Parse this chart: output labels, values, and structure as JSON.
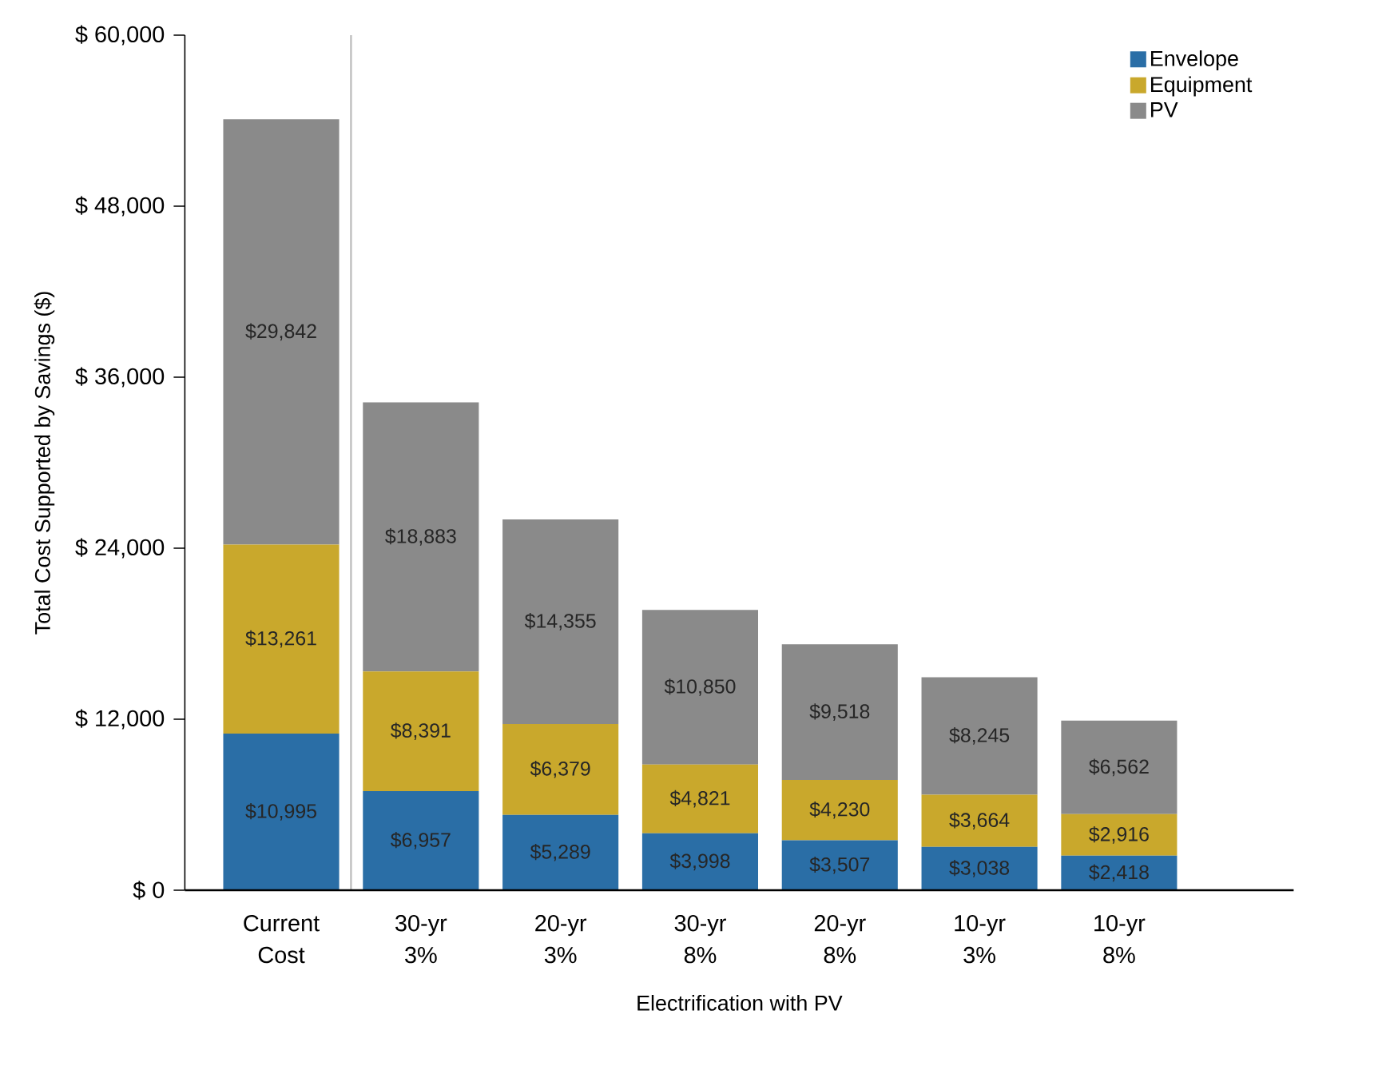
{
  "chart_data": {
    "type": "bar",
    "stacked": true,
    "xlabel": "Electrification with PV",
    "ylabel": "Total Cost Supported by Savings ($)",
    "categories": [
      "Current Cost",
      "30-yr 3%",
      "20-yr 3%",
      "30-yr 8%",
      "20-yr 8%",
      "10-yr 3%",
      "10-yr 8%"
    ],
    "series": [
      {
        "name": "Envelope",
        "color": "#2a6ea6",
        "values": [
          10995,
          6957,
          5289,
          3998,
          3507,
          3038,
          2418
        ],
        "value_labels": [
          "$10,995",
          "$6,957",
          "$5,289",
          "$3,998",
          "$3,507",
          "$3,038",
          "$2,418"
        ]
      },
      {
        "name": "Equipment",
        "color": "#c9a82c",
        "values": [
          13261,
          8391,
          6379,
          4821,
          4230,
          3664,
          2916
        ],
        "value_labels": [
          "$13,261",
          "$8,391",
          "$6,379",
          "$4,821",
          "$4,230",
          "$3,664",
          "$2,916"
        ]
      },
      {
        "name": "PV",
        "color": "#8a8a8a",
        "values": [
          29842,
          18883,
          14355,
          10850,
          9518,
          8245,
          6562
        ],
        "value_labels": [
          "$29,842",
          "$18,883",
          "$14,355",
          "$10,850",
          "$9,518",
          "$8,245",
          "$6,562"
        ]
      }
    ],
    "ylim": [
      0,
      60000
    ],
    "yticks": [
      {
        "value": 0,
        "label": "$      0"
      },
      {
        "value": 12000,
        "label": "$ 12,000"
      },
      {
        "value": 24000,
        "label": "$ 24,000"
      },
      {
        "value": 36000,
        "label": "$ 36,000"
      },
      {
        "value": 48000,
        "label": "$ 48,000"
      },
      {
        "value": 60000,
        "label": "$ 60,000"
      }
    ],
    "legend": "top right",
    "grid": false
  }
}
